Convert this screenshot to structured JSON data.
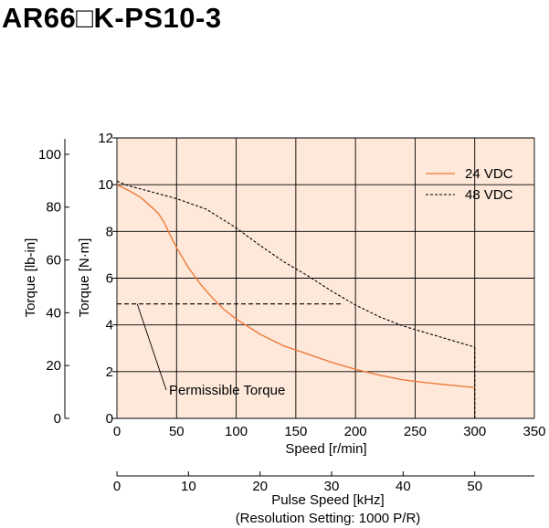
{
  "page_title": "AR66□K-PS10-3",
  "colors": {
    "plot_background": "#fde8d9",
    "grid": "#000000",
    "series_24": "#f07a3a",
    "series_48": "#000000",
    "text": "#000000"
  },
  "chart_data": {
    "type": "line",
    "title": "AR66□K-PS10-3",
    "xlabel": "Speed [r/min]",
    "ylabel": "Torque [N·m]",
    "secondary_ylabel": "Torque [lb-in]",
    "secondary_xlabel_line1": "Pulse Speed [kHz]",
    "secondary_xlabel_line2": "(Resolution Setting: 1000 P/R)",
    "xlim": [
      0,
      350
    ],
    "ylim": [
      0,
      12
    ],
    "secondary_ylim": [
      0,
      106.2
    ],
    "secondary_xlim": [
      0,
      350
    ],
    "x_ticks": [
      "0",
      "50",
      "100",
      "150",
      "200",
      "250",
      "300",
      "350"
    ],
    "x_tick_values": [
      0,
      50,
      100,
      150,
      200,
      250,
      300,
      350
    ],
    "y_ticks": [
      "0",
      "2",
      "4",
      "6",
      "8",
      "10",
      "12"
    ],
    "y_tick_values": [
      0,
      2,
      4,
      6,
      8,
      10,
      12
    ],
    "secondary_y_ticks": [
      "0",
      "20",
      "40",
      "60",
      "80",
      "100"
    ],
    "secondary_y_tick_values": [
      0,
      20,
      40,
      60,
      80,
      100
    ],
    "secondary_x_ticks": [
      "0",
      "10",
      "20",
      "30",
      "40",
      "50"
    ],
    "secondary_x_tick_speeds": [
      0,
      60,
      120,
      180,
      240,
      300
    ],
    "grid": true,
    "legend_position": "top-right",
    "series": [
      {
        "name": "24 VDC",
        "style": "solid",
        "x": [
          0,
          10,
          20,
          30,
          35,
          40,
          45,
          50,
          60,
          70,
          80,
          90,
          100,
          120,
          140,
          160,
          180,
          200,
          220,
          240,
          260,
          280,
          300
        ],
        "y": [
          10.0,
          9.75,
          9.45,
          9.0,
          8.75,
          8.35,
          7.8,
          7.3,
          6.45,
          5.75,
          5.15,
          4.65,
          4.25,
          3.6,
          3.1,
          2.75,
          2.4,
          2.1,
          1.85,
          1.65,
          1.52,
          1.42,
          1.32
        ]
      },
      {
        "name": "48 VDC",
        "style": "dashed",
        "x": [
          0,
          10,
          25,
          50,
          75,
          100,
          120,
          140,
          160,
          180,
          200,
          220,
          240,
          260,
          280,
          300
        ],
        "y": [
          10.15,
          9.95,
          9.75,
          9.4,
          8.95,
          8.15,
          7.4,
          6.7,
          6.1,
          5.45,
          4.85,
          4.35,
          3.95,
          3.65,
          3.35,
          3.05
        ]
      }
    ],
    "permissible_torque": {
      "label": "Permissible Torque",
      "value": 4.9,
      "x_end": 190
    },
    "vertical_cutoff_speed": 300
  }
}
